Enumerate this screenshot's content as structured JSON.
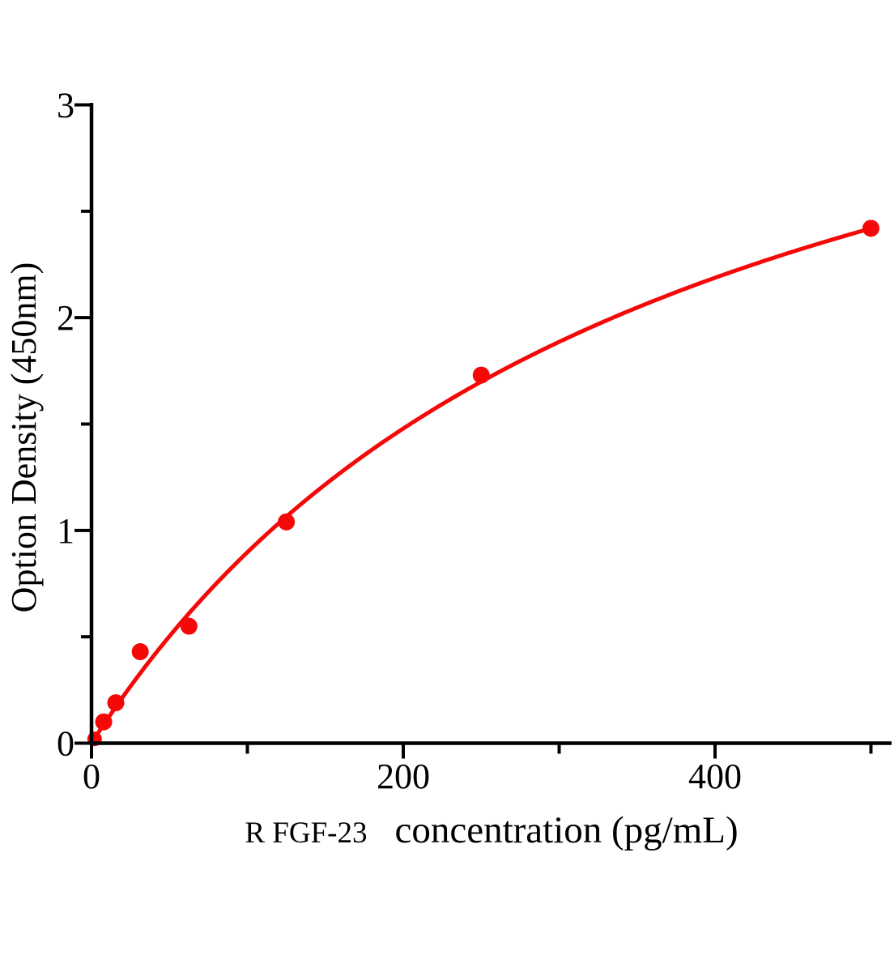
{
  "chart_data": {
    "type": "scatter",
    "title": "",
    "xlabel_prefix": "R FGF-23",
    "xlabel_main": "concentration (pg/mL)",
    "ylabel": "Option Density (450nm)",
    "grid": false,
    "legend": null,
    "background_color": "#ffffff",
    "axis_color": "#000000",
    "accent_color": "#f40808",
    "x_axis": {
      "lim": [
        0,
        513
      ],
      "major_ticks": [
        0,
        200,
        400
      ],
      "major_tick_labels": [
        "0",
        "200",
        "400"
      ],
      "minor_ticks": [
        100,
        300,
        500
      ]
    },
    "y_axis": {
      "lim": [
        0,
        3
      ],
      "major_ticks": [
        0,
        1,
        2,
        3
      ],
      "major_tick_labels": [
        "0",
        "1",
        "2",
        "3"
      ],
      "minor_ticks": [
        0.5,
        1.5,
        2.5
      ]
    },
    "series": [
      {
        "name": "standard-points",
        "type": "scatter",
        "color": "#f40808",
        "points": [
          {
            "x": 2,
            "y": 0.02,
            "partially_hidden": true
          },
          {
            "x": 7.8,
            "y": 0.1
          },
          {
            "x": 15.6,
            "y": 0.19
          },
          {
            "x": 31.25,
            "y": 0.43
          },
          {
            "x": 62.5,
            "y": 0.55
          },
          {
            "x": 125,
            "y": 1.04
          },
          {
            "x": 250,
            "y": 1.73
          },
          {
            "x": 500,
            "y": 2.42
          }
        ]
      },
      {
        "name": "fit-curve",
        "type": "line",
        "color": "#f40808",
        "fit": {
          "model": "michaelis_menten",
          "vmax": 4.2,
          "km": 368
        },
        "x_range": [
          0,
          500
        ]
      }
    ]
  }
}
